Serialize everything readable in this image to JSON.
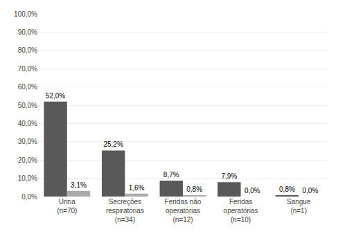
{
  "chart_data": {
    "type": "bar",
    "categories": [
      "Urina\n(n=70)",
      "Secreções\nrespiratórias\n(n=34)",
      "Feridas não\noperatórias\n(n=12)",
      "Feridas\noperatórias\n(n=10)",
      "Sangue\n(n=1)"
    ],
    "series": [
      {
        "color": "#595959",
        "values": [
          52.0,
          25.2,
          8.7,
          7.9,
          0.8
        ],
        "value_labels": [
          "52,0%",
          "25,2%",
          "8,7%",
          "7,9%",
          "0,8%"
        ]
      },
      {
        "color": "#aaaaaa",
        "values": [
          3.1,
          1.6,
          0.8,
          0.0,
          0.0
        ],
        "value_labels": [
          "3,1%",
          "1,6%",
          "0,8%",
          "0,0%",
          "0,0%"
        ]
      }
    ],
    "ylim": [
      0,
      100
    ],
    "yticks": [
      {
        "value": 0,
        "label": "0,0%"
      },
      {
        "value": 10,
        "label": "10,0%"
      },
      {
        "value": 20,
        "label": "20,0%"
      },
      {
        "value": 30,
        "label": "30,0%"
      },
      {
        "value": 40,
        "label": "40,0%"
      },
      {
        "value": 50,
        "label": "50,0%"
      },
      {
        "value": 60,
        "label": "60,0%"
      },
      {
        "value": 70,
        "label": "70,0%"
      },
      {
        "value": 80,
        "label": "80,0%"
      },
      {
        "value": 90,
        "label": "90,0%"
      },
      {
        "value": 100,
        "label": "100,0%"
      }
    ],
    "grid": true,
    "data_labels": true
  }
}
